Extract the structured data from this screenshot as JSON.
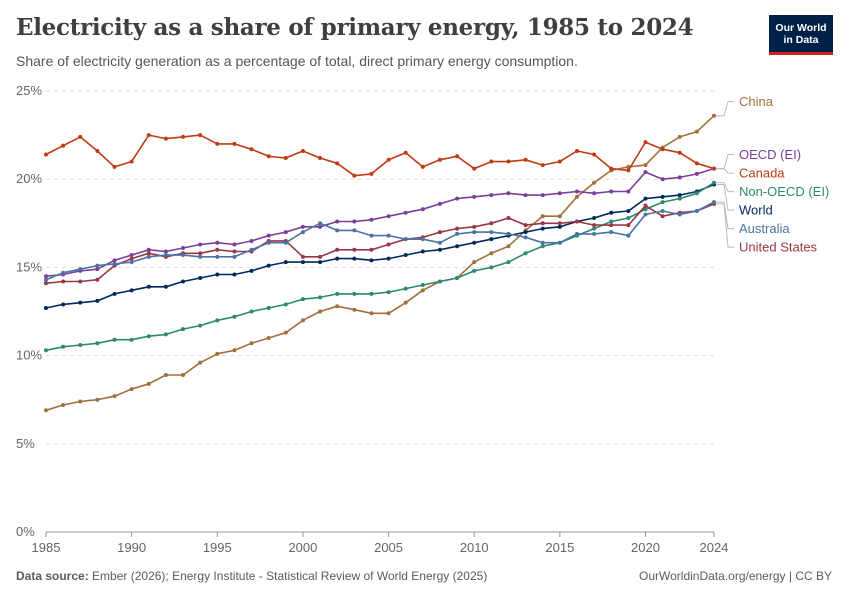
{
  "header": {
    "title": "Electricity as a share of primary energy, 1985 to 2024",
    "subtitle": "Share of electricity generation as a percentage of total, direct primary energy consumption."
  },
  "logo": {
    "line1": "Our World",
    "line2": "in Data",
    "bg_color": "#002147",
    "accent_color": "#ce261e"
  },
  "footer": {
    "source_label": "Data source:",
    "source_text": "Ember (2026); Energy Institute - Statistical Review of World Energy (2025)",
    "url": "OurWorldinData.org/energy | CC BY"
  },
  "chart_data": {
    "type": "line",
    "x": [
      1985,
      1986,
      1987,
      1988,
      1989,
      1990,
      1991,
      1992,
      1993,
      1994,
      1995,
      1996,
      1997,
      1998,
      1999,
      2000,
      2001,
      2002,
      2003,
      2004,
      2005,
      2006,
      2007,
      2008,
      2009,
      2010,
      2011,
      2012,
      2013,
      2014,
      2015,
      2016,
      2017,
      2018,
      2019,
      2020,
      2021,
      2022,
      2023,
      2024
    ],
    "xlim": [
      1985,
      2024
    ],
    "xticks": [
      "1985",
      "1990",
      "1995",
      "2000",
      "2005",
      "2010",
      "2015",
      "2020",
      "2024"
    ],
    "ylim": [
      0,
      25
    ],
    "yticks": [
      "0%",
      "5%",
      "10%",
      "15%",
      "20%",
      "25%"
    ],
    "grid": true,
    "series": [
      {
        "name": "China",
        "color": "#a2703a",
        "values": [
          6.9,
          7.2,
          7.4,
          7.5,
          7.7,
          8.1,
          8.4,
          8.9,
          8.9,
          9.6,
          10.1,
          10.3,
          10.7,
          11.0,
          11.3,
          12.0,
          12.5,
          12.8,
          12.6,
          12.4,
          12.4,
          13.0,
          13.7,
          14.2,
          14.4,
          15.3,
          15.8,
          16.2,
          17.1,
          17.9,
          17.9,
          19.0,
          19.8,
          20.5,
          20.7,
          20.8,
          21.8,
          22.4,
          22.7,
          23.6
        ]
      },
      {
        "name": "OECD (EI)",
        "color": "#7b3f98",
        "values": [
          14.5,
          14.6,
          14.8,
          14.9,
          15.4,
          15.7,
          16.0,
          15.9,
          16.1,
          16.3,
          16.4,
          16.3,
          16.5,
          16.8,
          17.0,
          17.3,
          17.3,
          17.6,
          17.6,
          17.7,
          17.9,
          18.1,
          18.3,
          18.6,
          18.9,
          19.0,
          19.1,
          19.2,
          19.1,
          19.1,
          19.2,
          19.3,
          19.2,
          19.3,
          19.3,
          20.4,
          20.0,
          20.1,
          20.3,
          20.6
        ]
      },
      {
        "name": "Canada",
        "color": "#bf3b12",
        "values": [
          21.4,
          21.9,
          22.4,
          21.6,
          20.7,
          21.0,
          22.5,
          22.3,
          22.4,
          22.5,
          22.0,
          22.0,
          21.7,
          21.3,
          21.2,
          21.6,
          21.2,
          20.9,
          20.2,
          20.3,
          21.1,
          21.5,
          20.7,
          21.1,
          21.3,
          20.6,
          21.0,
          21.0,
          21.1,
          20.8,
          21.0,
          21.6,
          21.4,
          20.6,
          20.5,
          22.1,
          21.7,
          21.5,
          20.9,
          20.6
        ]
      },
      {
        "name": "World",
        "color": "#00295b",
        "values": [
          12.7,
          12.9,
          13.0,
          13.1,
          13.5,
          13.7,
          13.9,
          13.9,
          14.2,
          14.4,
          14.6,
          14.6,
          14.8,
          15.1,
          15.3,
          15.3,
          15.3,
          15.5,
          15.5,
          15.4,
          15.5,
          15.7,
          15.9,
          16.0,
          16.2,
          16.4,
          16.6,
          16.8,
          17.0,
          17.2,
          17.3,
          17.6,
          17.8,
          18.1,
          18.2,
          18.9,
          19.0,
          19.1,
          19.3,
          19.7
        ]
      },
      {
        "name": "Non-OECD (EI)",
        "color": "#2d8a6e",
        "values": [
          10.3,
          10.5,
          10.6,
          10.7,
          10.9,
          10.9,
          11.1,
          11.2,
          11.5,
          11.7,
          12.0,
          12.2,
          12.5,
          12.7,
          12.9,
          13.2,
          13.3,
          13.5,
          13.5,
          13.5,
          13.6,
          13.8,
          14.0,
          14.2,
          14.4,
          14.8,
          15.0,
          15.3,
          15.8,
          16.2,
          16.4,
          16.8,
          17.2,
          17.6,
          17.8,
          18.3,
          18.7,
          18.9,
          19.2,
          19.8
        ]
      },
      {
        "name": "United States",
        "color": "#9a3645",
        "values": [
          14.1,
          14.2,
          14.2,
          14.3,
          15.1,
          15.5,
          15.8,
          15.6,
          15.8,
          15.8,
          16.0,
          15.9,
          15.9,
          16.5,
          16.5,
          15.6,
          15.6,
          16.0,
          16.0,
          16.0,
          16.3,
          16.6,
          16.7,
          17.0,
          17.2,
          17.3,
          17.5,
          17.8,
          17.4,
          17.5,
          17.5,
          17.6,
          17.4,
          17.4,
          17.4,
          18.5,
          17.9,
          18.1,
          18.2,
          18.6
        ]
      },
      {
        "name": "Australia",
        "color": "#4a74a4",
        "values": [
          14.3,
          14.7,
          14.9,
          15.1,
          15.2,
          15.3,
          15.6,
          15.7,
          15.7,
          15.6,
          15.6,
          15.6,
          16.0,
          16.4,
          16.4,
          17.0,
          17.5,
          17.1,
          17.1,
          16.8,
          16.8,
          16.6,
          16.6,
          16.4,
          16.9,
          17.0,
          17.0,
          16.9,
          16.7,
          16.4,
          16.4,
          16.9,
          16.9,
          17.0,
          16.8,
          18.0,
          18.2,
          18.0,
          18.2,
          18.7
        ]
      }
    ],
    "legend_position": "right (inline end labels)"
  }
}
